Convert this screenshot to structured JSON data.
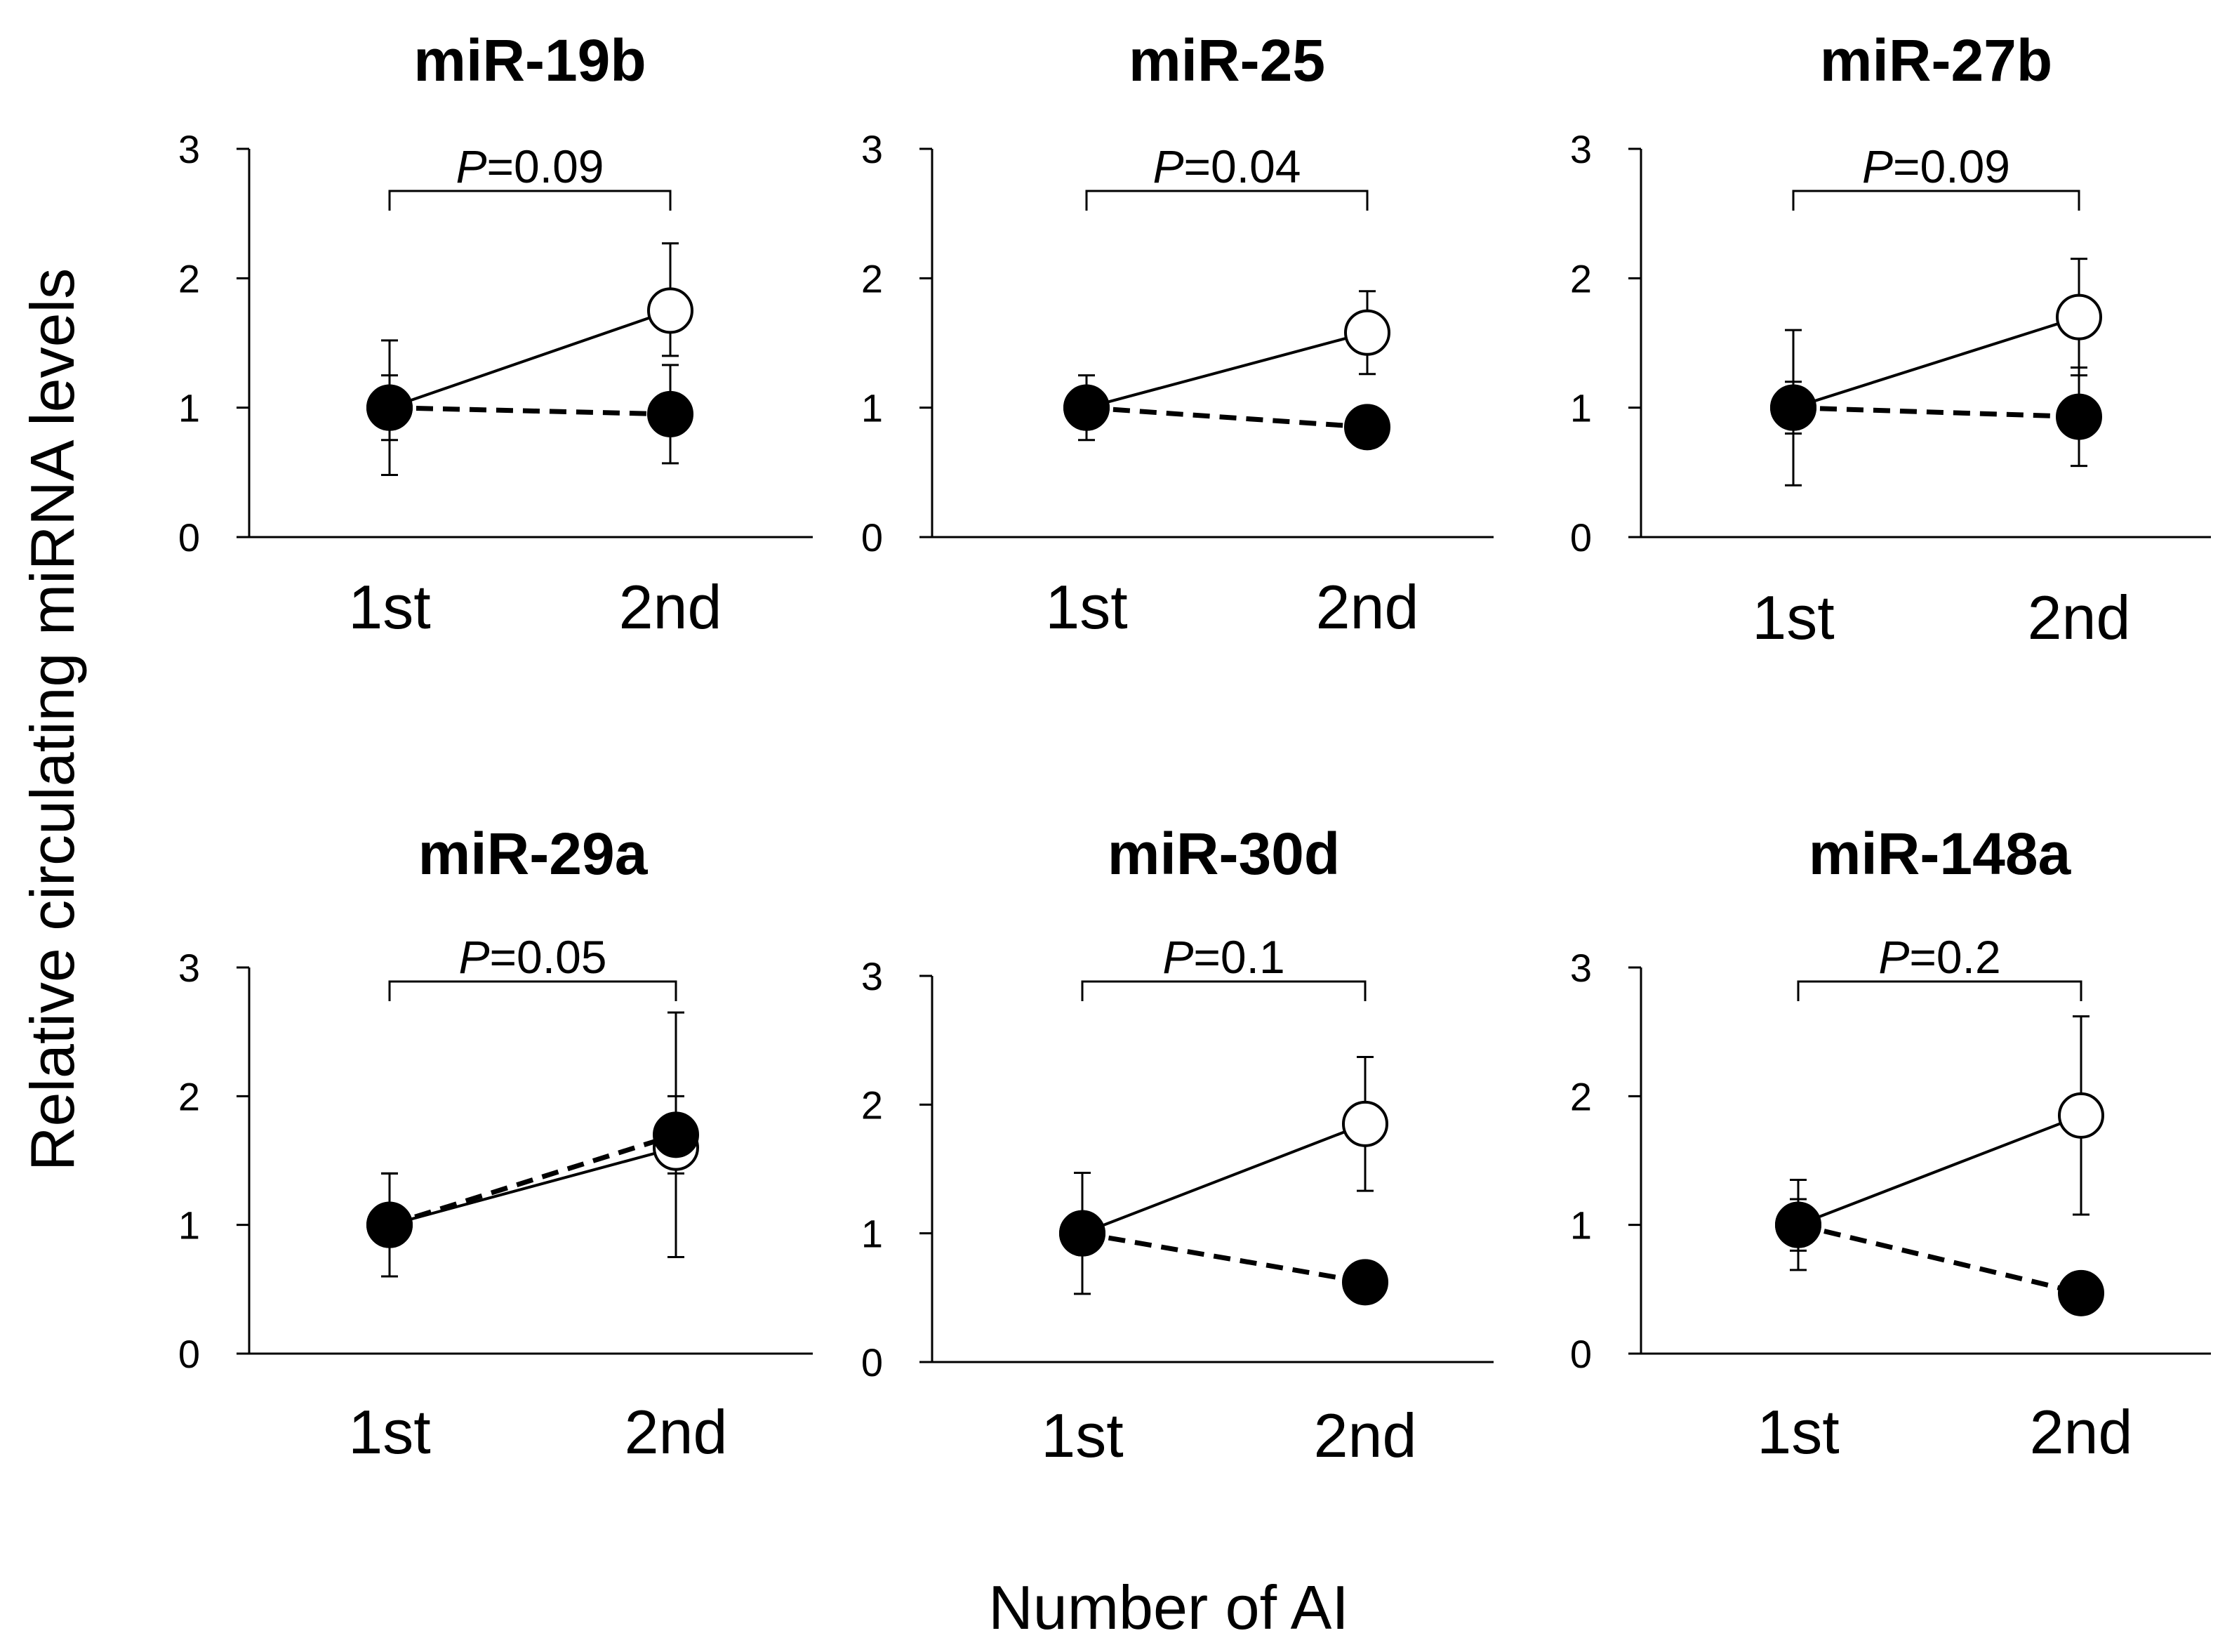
{
  "figure": {
    "ylabel": "Relative circulating miRNA levels",
    "xlabel": "Number of AI"
  },
  "chart_data": [
    {
      "type": "line",
      "title": "miR-19b",
      "categories": [
        "1st",
        "2nd"
      ],
      "ylim": [
        0,
        3
      ],
      "yticks": [
        "0",
        "1",
        "2",
        "3"
      ],
      "p_label": "P",
      "p_value": "=0.09",
      "series": [
        {
          "name": "open",
          "marker": "open-circle",
          "line": "solid",
          "values": [
            1.0,
            1.75
          ],
          "err_up": [
            0.52,
            0.52
          ],
          "err_down": [
            0.52,
            0.35
          ]
        },
        {
          "name": "filled",
          "marker": "filled-circle",
          "line": "dashed",
          "values": [
            1.0,
            0.95
          ],
          "err_up": [
            0.25,
            0.38
          ],
          "err_down": [
            0.25,
            0.38
          ]
        }
      ]
    },
    {
      "type": "line",
      "title": "miR-25",
      "categories": [
        "1st",
        "2nd"
      ],
      "ylim": [
        0,
        3
      ],
      "yticks": [
        "0",
        "1",
        "2",
        "3"
      ],
      "p_label": "P",
      "p_value": "=0.04",
      "series": [
        {
          "name": "open",
          "marker": "open-circle",
          "line": "solid",
          "values": [
            1.0,
            1.58
          ],
          "err_up": [
            0.25,
            0.32
          ],
          "err_down": [
            0.25,
            0.32
          ]
        },
        {
          "name": "filled",
          "marker": "filled-circle",
          "line": "dashed",
          "values": [
            1.0,
            0.85
          ],
          "err_up": [
            0.15,
            0.1
          ],
          "err_down": [
            0.15,
            0.1
          ]
        }
      ]
    },
    {
      "type": "line",
      "title": "miR-27b",
      "categories": [
        "1st",
        "2nd"
      ],
      "ylim": [
        0,
        3
      ],
      "yticks": [
        "0",
        "1",
        "2",
        "3"
      ],
      "p_label": "P",
      "p_value": "=0.09",
      "series": [
        {
          "name": "open",
          "marker": "open-circle",
          "line": "solid",
          "values": [
            1.0,
            1.7
          ],
          "err_up": [
            0.6,
            0.45
          ],
          "err_down": [
            0.6,
            0.45
          ]
        },
        {
          "name": "filled",
          "marker": "filled-circle",
          "line": "dashed",
          "values": [
            1.0,
            0.93
          ],
          "err_up": [
            0.2,
            0.38
          ],
          "err_down": [
            0.2,
            0.38
          ]
        }
      ]
    },
    {
      "type": "line",
      "title": "miR-29a",
      "categories": [
        "1st",
        "2nd"
      ],
      "ylim": [
        0,
        3
      ],
      "yticks": [
        "0",
        "1",
        "2",
        "3"
      ],
      "p_label": "P",
      "p_value": "=0.05",
      "series": [
        {
          "name": "open",
          "marker": "open-circle",
          "line": "solid",
          "values": [
            1.0,
            1.6
          ],
          "err_up": [
            0.4,
            1.05
          ],
          "err_down": [
            0.4,
            0.85
          ]
        },
        {
          "name": "filled",
          "marker": "filled-circle",
          "line": "dashed",
          "values": [
            1.0,
            1.7
          ],
          "err_up": [
            0.4,
            0.3
          ],
          "err_down": [
            0.4,
            0.3
          ]
        }
      ]
    },
    {
      "type": "line",
      "title": "miR-30d",
      "categories": [
        "1st",
        "2nd"
      ],
      "ylim": [
        0,
        3
      ],
      "yticks": [
        "0",
        "1",
        "2",
        "3"
      ],
      "p_label": "P",
      "p_value": "=0.1",
      "series": [
        {
          "name": "open",
          "marker": "open-circle",
          "line": "solid",
          "values": [
            1.0,
            1.85
          ],
          "err_up": [
            0.47,
            0.52
          ],
          "err_down": [
            0.47,
            0.52
          ]
        },
        {
          "name": "filled",
          "marker": "filled-circle",
          "line": "dashed",
          "values": [
            1.0,
            0.62
          ],
          "err_up": [
            0.12,
            0.0
          ],
          "err_down": [
            0.12,
            0.0
          ]
        }
      ]
    },
    {
      "type": "line",
      "title": "miR-148a",
      "categories": [
        "1st",
        "2nd"
      ],
      "ylim": [
        0,
        3
      ],
      "yticks": [
        "0",
        "1",
        "2",
        "3"
      ],
      "p_label": "P",
      "p_value": "=0.2",
      "series": [
        {
          "name": "open",
          "marker": "open-circle",
          "line": "solid",
          "values": [
            1.0,
            1.85
          ],
          "err_up": [
            0.35,
            0.77
          ],
          "err_down": [
            0.35,
            0.77
          ]
        },
        {
          "name": "filled",
          "marker": "filled-circle",
          "line": "dashed",
          "values": [
            1.0,
            0.47
          ],
          "err_up": [
            0.2,
            0.0
          ],
          "err_down": [
            0.2,
            0.0
          ]
        }
      ]
    }
  ]
}
